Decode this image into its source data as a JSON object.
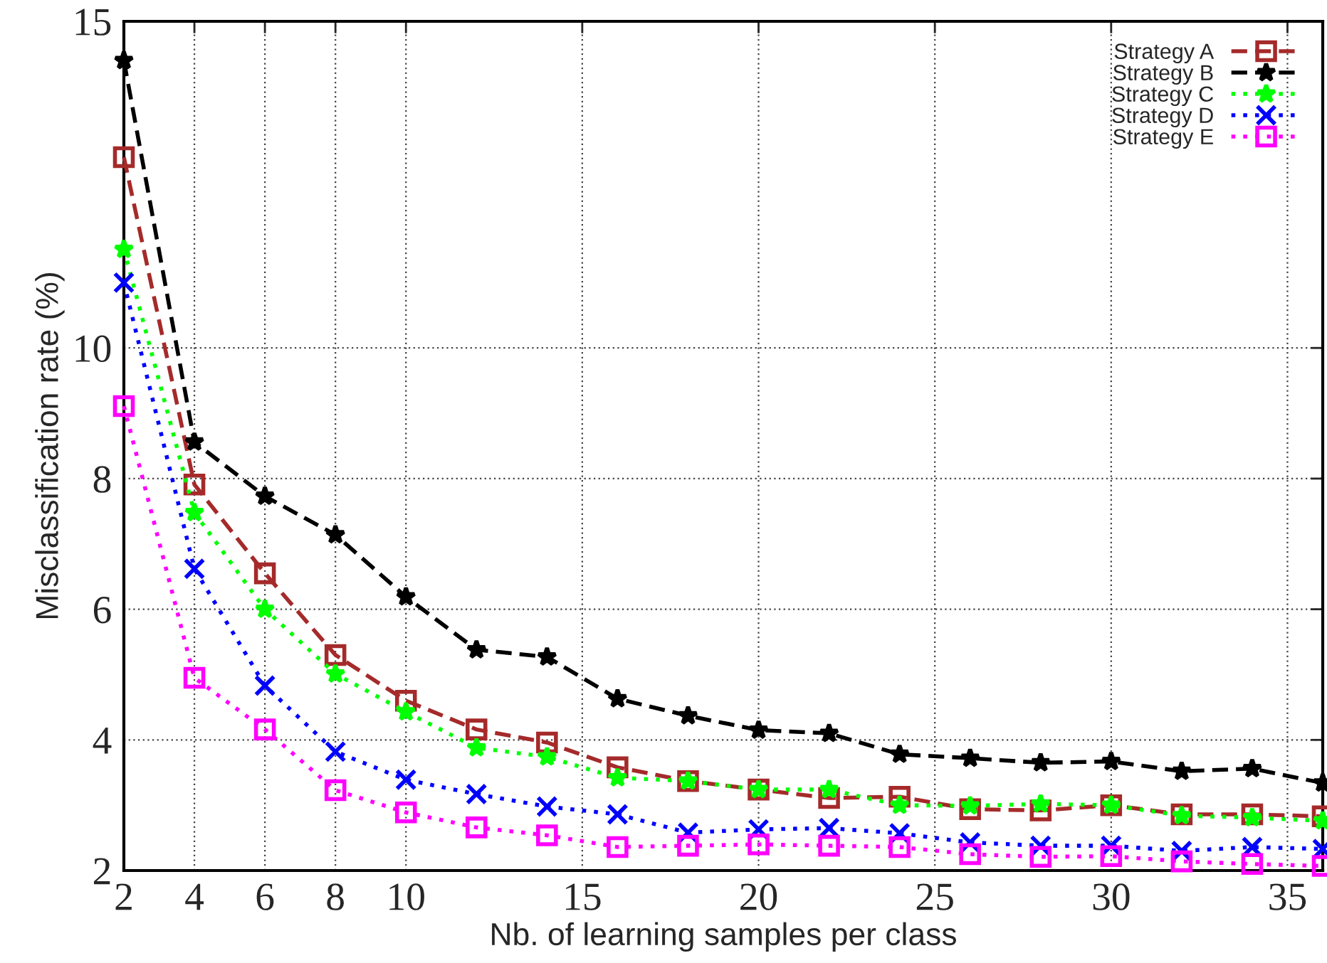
{
  "chart_data": {
    "type": "line",
    "xlabel": "Nb. of learning samples per class",
    "ylabel": "Misclassification rate (%)",
    "x": [
      2,
      4,
      6,
      8,
      10,
      12,
      14,
      16,
      18,
      20,
      22,
      24,
      26,
      28,
      30,
      32,
      34,
      36
    ],
    "xlim": [
      2,
      36
    ],
    "xticks": [
      2,
      4,
      6,
      8,
      10,
      15,
      20,
      25,
      30,
      35
    ],
    "ylim": [
      2,
      15
    ],
    "yticks": [
      2,
      4,
      6,
      8,
      10,
      15
    ],
    "grid": true,
    "legend": "top right",
    "series": [
      {
        "name": "Strategy A",
        "color": "#a52a2a",
        "marker": "square",
        "line_style": "dashed",
        "values": [
          12.92,
          7.91,
          6.55,
          5.3,
          4.6,
          4.16,
          3.96,
          3.58,
          3.37,
          3.24,
          3.11,
          3.13,
          2.94,
          2.92,
          3.0,
          2.86,
          2.86,
          2.83
        ]
      },
      {
        "name": "Strategy B",
        "color": "#000000",
        "marker": "star",
        "line_style": "dashed",
        "values": [
          14.4,
          8.56,
          7.73,
          7.14,
          6.19,
          5.38,
          5.27,
          4.63,
          4.37,
          4.15,
          4.1,
          3.78,
          3.72,
          3.65,
          3.67,
          3.52,
          3.56,
          3.34
        ]
      },
      {
        "name": "Strategy C",
        "color": "#00ff00",
        "marker": "star",
        "line_style": "dotted",
        "values": [
          11.51,
          7.48,
          6.0,
          5.01,
          4.43,
          3.88,
          3.74,
          3.42,
          3.37,
          3.24,
          3.24,
          3.0,
          2.99,
          3.02,
          3.0,
          2.84,
          2.81,
          2.76
        ]
      },
      {
        "name": "Strategy D",
        "color": "#0000ff",
        "marker": "cross",
        "line_style": "dotted",
        "values": [
          11.0,
          6.62,
          4.83,
          3.82,
          3.39,
          3.17,
          2.98,
          2.86,
          2.58,
          2.63,
          2.65,
          2.57,
          2.43,
          2.38,
          2.38,
          2.3,
          2.36,
          2.33
        ]
      },
      {
        "name": "Strategy E",
        "color": "#ff00ff",
        "marker": "square",
        "line_style": "dotted",
        "values": [
          9.11,
          4.95,
          4.16,
          3.23,
          2.89,
          2.66,
          2.54,
          2.36,
          2.38,
          2.4,
          2.38,
          2.36,
          2.25,
          2.21,
          2.22,
          2.14,
          2.1,
          2.07
        ]
      }
    ]
  }
}
